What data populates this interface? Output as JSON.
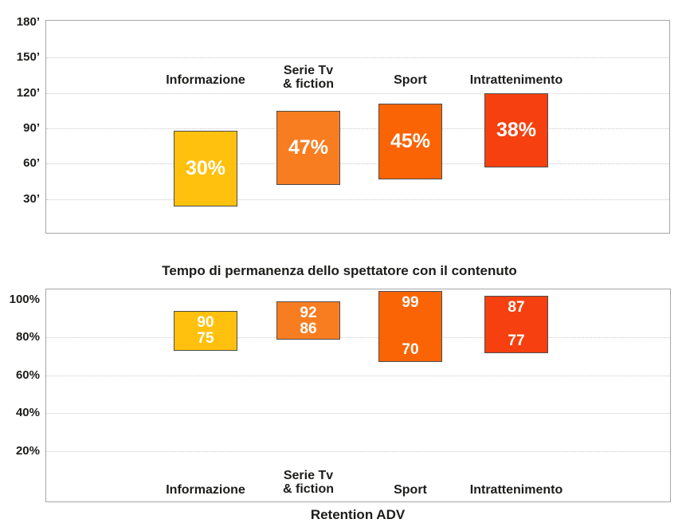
{
  "page": {
    "background": "#ffffff",
    "text_color": "#1d1d1b"
  },
  "colors": {
    "informazione": "#FFC10D",
    "serie_tv_fiction": "#F87D21",
    "sport": "#FA6405",
    "intrattenimento": "#F6400F",
    "bar_border": "#4d4d4d",
    "plot_border": "#a6a6a6",
    "gridline": "#c9c9c9",
    "value_text": "#ffffff"
  },
  "chart_data": [
    {
      "id": "tempo-minuti",
      "type": "bar",
      "subtype": "floating-range-bar",
      "title": "",
      "y_axis": {
        "unit": "minutes",
        "tick_labels": [
          "180’",
          "150’",
          "120’",
          "90’",
          "60’",
          "30’"
        ],
        "ticks": [
          180,
          150,
          120,
          90,
          60,
          30
        ],
        "gridline_ticks": [
          150,
          120,
          90,
          60,
          30
        ],
        "range": [
          0,
          181
        ],
        "grid": "dotted"
      },
      "categories": [
        {
          "label": "Informazione",
          "lines": [
            "Informazione"
          ]
        },
        {
          "label": "Serie Tv & fiction",
          "lines": [
            "Serie Tv",
            "& fiction"
          ]
        },
        {
          "label": "Sport",
          "lines": [
            "Sport"
          ]
        },
        {
          "label": "Intrattenimento",
          "lines": [
            "Intrattenimento"
          ]
        }
      ],
      "bars": [
        {
          "category": "Informazione",
          "value_label": "30%",
          "span_minutes": [
            24,
            88
          ],
          "color": "#FFC10D"
        },
        {
          "category": "Serie Tv & fiction",
          "value_label": "47%",
          "span_minutes": [
            42,
            105
          ],
          "color": "#F87D21"
        },
        {
          "category": "Sport",
          "value_label": "45%",
          "span_minutes": [
            47,
            111
          ],
          "color": "#FA6405"
        },
        {
          "category": "Intrattenimento",
          "value_label": "38%",
          "span_minutes": [
            57,
            120
          ],
          "color": "#F6400F"
        }
      ]
    },
    {
      "id": "retention-adv",
      "type": "bar",
      "subtype": "floating-range-bar",
      "title": "Tempo di permanenza dello spettatore con il contenuto",
      "xlabel": "Retention ADV",
      "y_axis": {
        "unit": "%",
        "tick_labels": [
          "100%",
          "80%",
          "60%",
          "40%",
          "20%"
        ],
        "ticks": [
          100,
          80,
          60,
          40,
          20
        ],
        "gridline_ticks": [
          80,
          60,
          40,
          20
        ],
        "range": [
          0,
          113
        ],
        "grid": "dotted"
      },
      "categories": [
        {
          "label": "Informazione",
          "lines": [
            "Informazione"
          ]
        },
        {
          "label": "Serie Tv & fiction",
          "lines": [
            "Serie Tv",
            "& fiction"
          ]
        },
        {
          "label": "Sport",
          "lines": [
            "Sport"
          ]
        },
        {
          "label": "Intrattenimento",
          "lines": [
            "Intrattenimento"
          ]
        }
      ],
      "bars": [
        {
          "category": "Informazione",
          "value_top": "90",
          "value_bottom": "75",
          "span_pct": [
            73,
            94
          ],
          "color": "#FFC10D"
        },
        {
          "category": "Serie Tv & fiction",
          "value_top": "92",
          "value_bottom": "86",
          "span_pct": [
            79,
            99
          ],
          "color": "#F87D21"
        },
        {
          "category": "Sport",
          "value_top": "99",
          "value_bottom": "70",
          "span_pct": [
            67,
            104.5
          ],
          "color": "#FA6405"
        },
        {
          "category": "Intrattenimento",
          "value_top": "87",
          "value_bottom": "77",
          "span_pct": [
            71.5,
            102
          ],
          "color": "#F6400F"
        }
      ]
    }
  ]
}
